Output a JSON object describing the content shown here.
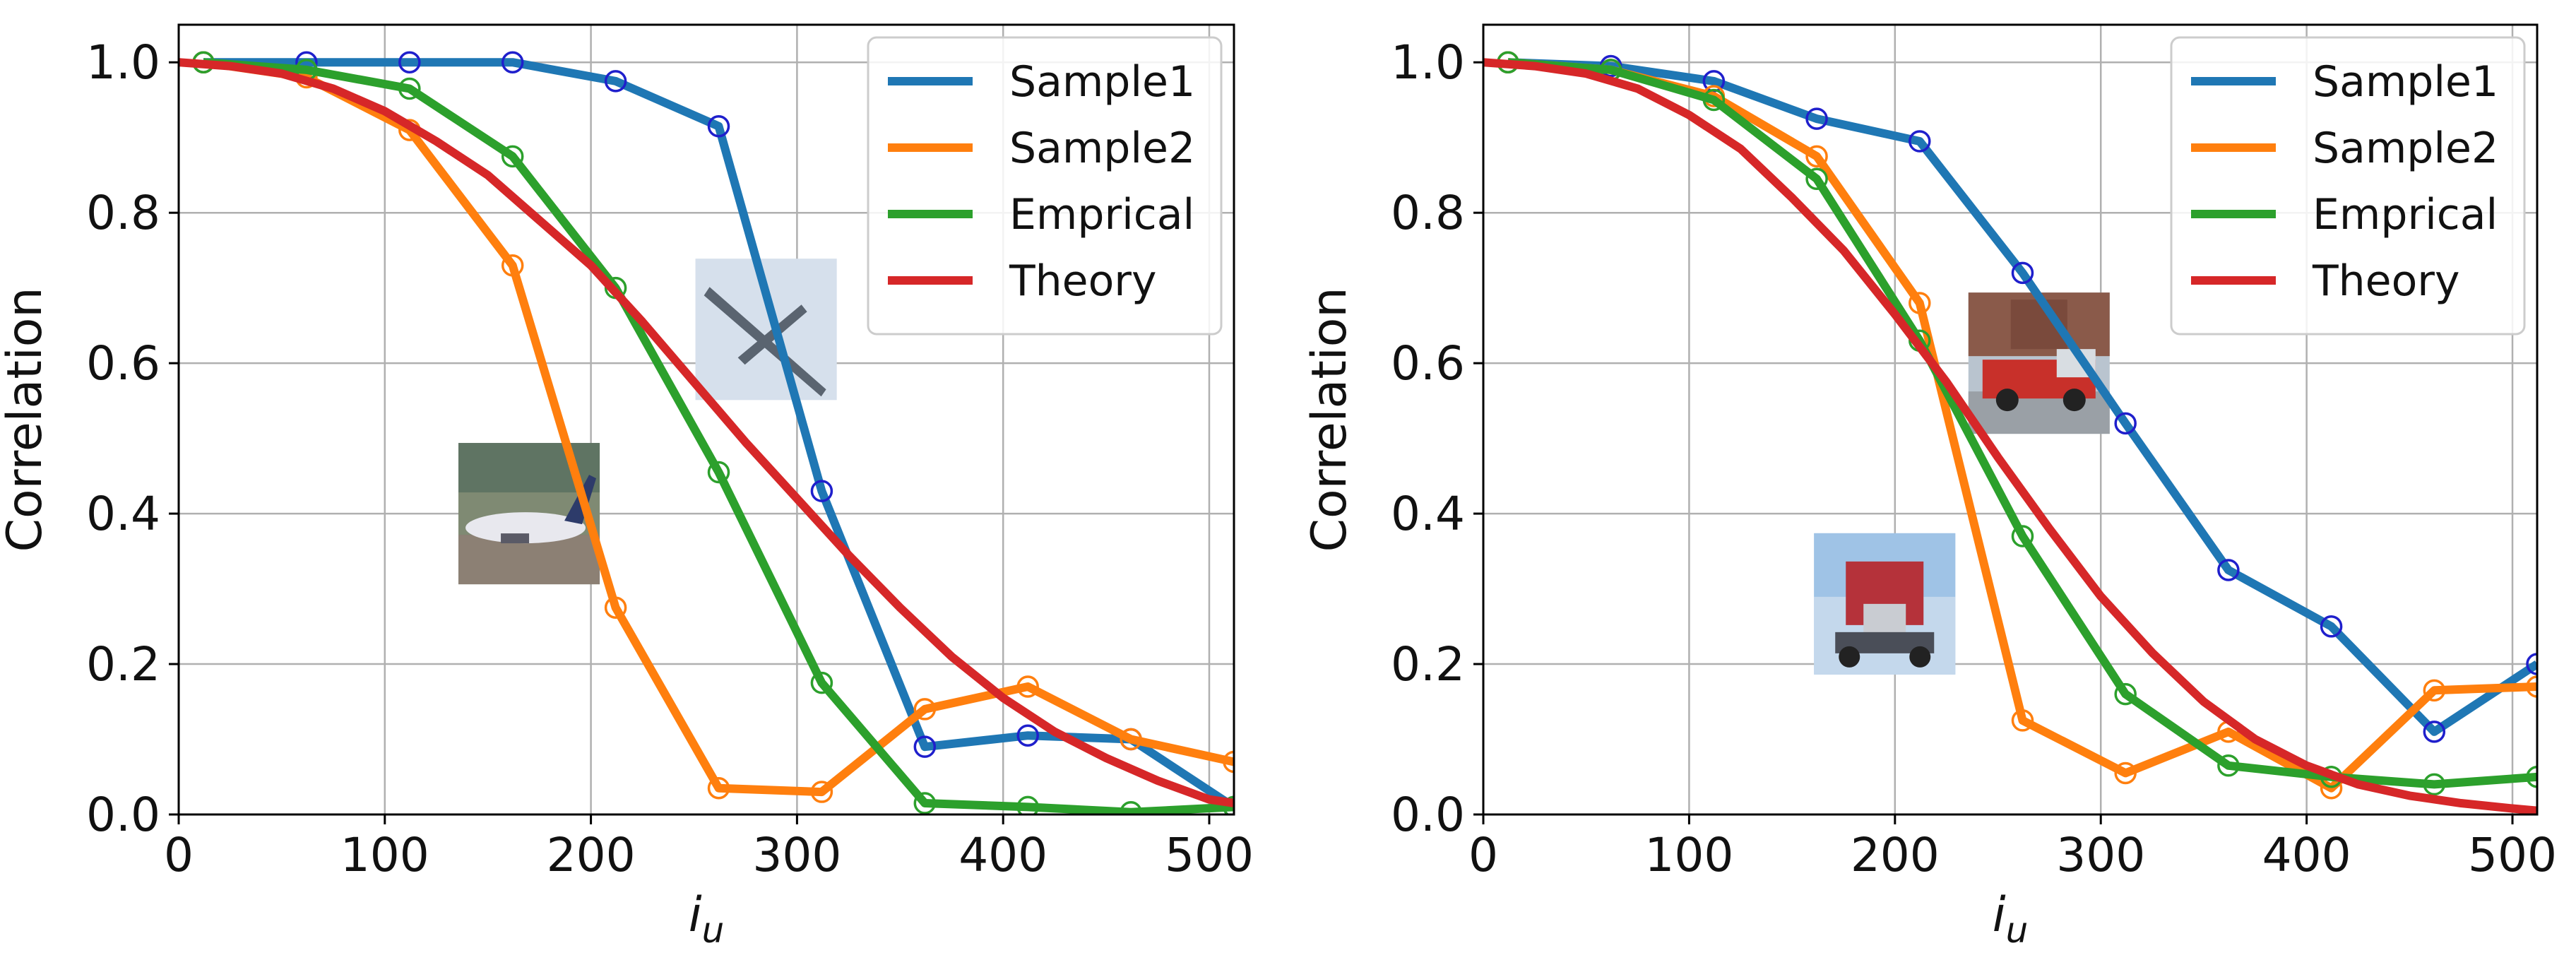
{
  "figure": {
    "description_free": true,
    "panels": 2
  },
  "chart_data": [
    {
      "type": "line",
      "panel": "left",
      "xlabel": "i",
      "xlabel_subscript": "u",
      "ylabel": "Correlation",
      "xlim": [
        0,
        512
      ],
      "ylim": [
        0,
        1.05
      ],
      "xticks": [
        0,
        100,
        200,
        300,
        400,
        500
      ],
      "xtick_labels": [
        "0",
        "100",
        "200",
        "300",
        "400",
        "500"
      ],
      "yticks": [
        0.0,
        0.2,
        0.4,
        0.6,
        0.8,
        1.0
      ],
      "ytick_labels": [
        "0.0",
        "0.2",
        "0.4",
        "0.6",
        "0.8",
        "1.0"
      ],
      "grid": true,
      "legend_position": "top-right",
      "series": [
        {
          "name": "Sample1",
          "color": "#1f77b4",
          "marker_color": "#1f1fcc",
          "markers": true,
          "x": [
            12,
            62,
            112,
            162,
            212,
            262,
            312,
            362,
            412,
            462,
            512
          ],
          "values": [
            1.0,
            1.0,
            1.0,
            1.0,
            0.975,
            0.915,
            0.43,
            0.09,
            0.105,
            0.1,
            0.01
          ]
        },
        {
          "name": "Sample2",
          "color": "#ff7f0e",
          "marker_color": "#ff7f0e",
          "markers": true,
          "x": [
            12,
            62,
            112,
            162,
            212,
            262,
            312,
            362,
            412,
            462,
            512
          ],
          "values": [
            1.0,
            0.98,
            0.91,
            0.73,
            0.275,
            0.035,
            0.03,
            0.14,
            0.17,
            0.1,
            0.07
          ]
        },
        {
          "name": "Emprical",
          "color": "#2ca02c",
          "marker_color": "#2ca02c",
          "markers": true,
          "x": [
            12,
            62,
            112,
            162,
            212,
            262,
            312,
            362,
            412,
            462,
            512
          ],
          "values": [
            1.0,
            0.99,
            0.965,
            0.875,
            0.7,
            0.455,
            0.175,
            0.015,
            0.01,
            0.003,
            0.01
          ]
        },
        {
          "name": "Theory",
          "color": "#d62728",
          "markers": false,
          "x": [
            0,
            25,
            50,
            75,
            100,
            125,
            150,
            175,
            200,
            225,
            250,
            275,
            300,
            325,
            350,
            375,
            400,
            425,
            450,
            475,
            500,
            512
          ],
          "values": [
            1.0,
            0.995,
            0.985,
            0.965,
            0.935,
            0.895,
            0.85,
            0.79,
            0.73,
            0.655,
            0.575,
            0.495,
            0.42,
            0.345,
            0.275,
            0.21,
            0.155,
            0.11,
            0.075,
            0.045,
            0.02,
            0.015
          ]
        }
      ],
      "thumbnails": [
        {
          "name": "airplane-thumbnail",
          "subject": "propeller airplane",
          "x": 285,
          "y": 0.645,
          "palette": [
            "#c8d4e4",
            "#e4ebf3",
            "#5a6470"
          ]
        },
        {
          "name": "airliner-thumbnail",
          "subject": "airliner on runway",
          "x": 170,
          "y": 0.4,
          "palette": [
            "#5f7463",
            "#7f8a73",
            "#e8e8ee"
          ]
        }
      ]
    },
    {
      "type": "line",
      "panel": "right",
      "xlabel": "i",
      "xlabel_subscript": "u",
      "ylabel": "Correlation",
      "xlim": [
        0,
        512
      ],
      "ylim": [
        0,
        1.05
      ],
      "xticks": [
        0,
        100,
        200,
        300,
        400,
        500
      ],
      "xtick_labels": [
        "0",
        "100",
        "200",
        "300",
        "400",
        "500"
      ],
      "yticks": [
        0.0,
        0.2,
        0.4,
        0.6,
        0.8,
        1.0
      ],
      "ytick_labels": [
        "0.0",
        "0.2",
        "0.4",
        "0.6",
        "0.8",
        "1.0"
      ],
      "grid": true,
      "legend_position": "top-right",
      "series": [
        {
          "name": "Sample1",
          "color": "#1f77b4",
          "marker_color": "#1f1fcc",
          "markers": true,
          "x": [
            12,
            62,
            112,
            162,
            212,
            262,
            312,
            362,
            412,
            462,
            512
          ],
          "values": [
            1.0,
            0.995,
            0.975,
            0.925,
            0.895,
            0.72,
            0.52,
            0.325,
            0.25,
            0.11,
            0.2
          ]
        },
        {
          "name": "Sample2",
          "color": "#ff7f0e",
          "marker_color": "#ff7f0e",
          "markers": true,
          "x": [
            12,
            62,
            112,
            162,
            212,
            262,
            312,
            362,
            412,
            462,
            512
          ],
          "values": [
            1.0,
            0.99,
            0.955,
            0.875,
            0.68,
            0.125,
            0.055,
            0.11,
            0.035,
            0.165,
            0.17
          ]
        },
        {
          "name": "Emprical",
          "color": "#2ca02c",
          "marker_color": "#2ca02c",
          "markers": true,
          "x": [
            12,
            62,
            112,
            162,
            212,
            262,
            312,
            362,
            412,
            462,
            512
          ],
          "values": [
            1.0,
            0.99,
            0.95,
            0.845,
            0.63,
            0.37,
            0.16,
            0.065,
            0.05,
            0.04,
            0.05
          ]
        },
        {
          "name": "Theory",
          "color": "#d62728",
          "markers": false,
          "x": [
            0,
            25,
            50,
            75,
            100,
            125,
            150,
            175,
            200,
            225,
            250,
            275,
            300,
            325,
            350,
            375,
            400,
            425,
            450,
            475,
            500,
            512
          ],
          "values": [
            1.0,
            0.995,
            0.985,
            0.965,
            0.93,
            0.885,
            0.82,
            0.75,
            0.665,
            0.575,
            0.475,
            0.38,
            0.29,
            0.215,
            0.15,
            0.1,
            0.065,
            0.04,
            0.025,
            0.015,
            0.008,
            0.005
          ]
        }
      ],
      "thumbnails": [
        {
          "name": "firetruck-thumbnail",
          "subject": "red fire truck",
          "x": 270,
          "y": 0.6,
          "palette": [
            "#b9c4cf",
            "#8a5a4a",
            "#c8302a"
          ]
        },
        {
          "name": "semi-truck-thumbnail",
          "subject": "semi truck",
          "x": 195,
          "y": 0.28,
          "palette": [
            "#9fc3e6",
            "#c4d8ec",
            "#b5323a"
          ]
        }
      ]
    }
  ]
}
